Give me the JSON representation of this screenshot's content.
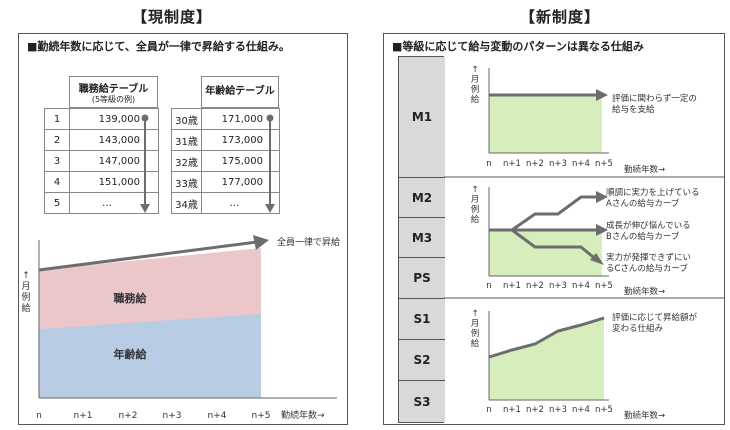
{
  "left": {
    "title": "【現制度】",
    "heading": "■勤続年数に応じて、全員が一律で昇給する仕組み。",
    "job_table": {
      "header": "職務給テーブル",
      "subheader": "(5等級の例)",
      "rows": [
        [
          "1",
          "139,000"
        ],
        [
          "2",
          "143,000"
        ],
        [
          "3",
          "147,000"
        ],
        [
          "4",
          "151,000"
        ],
        [
          "5",
          "…"
        ]
      ]
    },
    "age_table": {
      "header": "年齢給テーブル",
      "rows": [
        [
          "30歳",
          "171,000"
        ],
        [
          "31歳",
          "173,000"
        ],
        [
          "32歳",
          "175,000"
        ],
        [
          "33歳",
          "177,000"
        ],
        [
          "34歳",
          "…"
        ]
      ]
    },
    "chart": {
      "arrow_label": "全員一律で昇給",
      "ylabel": [
        "↑",
        "月",
        "例",
        "給"
      ],
      "band_upper": "職務給",
      "band_lower": "年齢給",
      "xticks": [
        "n",
        "n+1",
        "n+2",
        "n+3",
        "n+4",
        "n+5"
      ],
      "xlabel": "勤続年数→"
    }
  },
  "right": {
    "title": "【新制度】",
    "heading": "■等級に応じて給与変動のパターンは異なる仕組み",
    "grades": [
      "M1",
      "M2",
      "M3",
      "PS",
      "S1",
      "S2",
      "S3"
    ],
    "ylabel": [
      "↑",
      "月",
      "例",
      "給"
    ],
    "xticks": [
      "n",
      "n+1",
      "n+2",
      "n+3",
      "n+4",
      "n+5"
    ],
    "xlabel": "勤続年数→",
    "chart1": {
      "notes": [
        "評価に関わらず一定の",
        "給与を支給"
      ]
    },
    "chart2": {
      "notes": [
        [
          "順調に実力を上げている",
          "Aさんの給与カーブ"
        ],
        [
          "成長が伸び悩んでいる",
          "Bさんの給与カーブ"
        ],
        [
          "実力が発揮できずにい",
          "るCさんの給与カーブ"
        ]
      ]
    },
    "chart3": {
      "notes": [
        "評価に応じて昇給額が",
        "変わる仕組み"
      ]
    }
  },
  "colors": {
    "green": "#d5eebb",
    "blue": "#b8cce4",
    "pink": "#ecc7c9",
    "arrow": "#6d6d6d",
    "grade_bg": "#d9d9d9"
  }
}
